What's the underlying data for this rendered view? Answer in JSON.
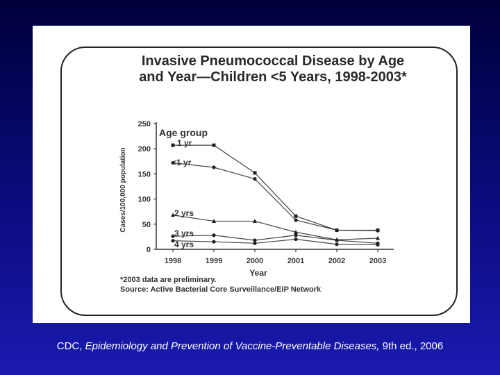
{
  "slide": {
    "caption_prefix": "CDC, ",
    "caption_italic": "Epidemiology and Prevention of Vaccine-Preventable Diseases,",
    "caption_suffix": " 9th ed., 2006"
  },
  "chart_data": {
    "type": "line",
    "title_line1": "Invasive Pneumococcal Disease by Age",
    "title_line2": "and Year—Children <5 Years, 1998-2003*",
    "xlabel": "Year",
    "ylabel": "Cases/100,000 population",
    "x": [
      1998,
      1999,
      2000,
      2001,
      2002,
      2003
    ],
    "x_tick_labels": [
      "1998",
      "1999",
      "2000",
      "2001",
      "2002",
      "2003"
    ],
    "ylim": [
      0,
      250
    ],
    "y_ticks": [
      0,
      50,
      100,
      150,
      200,
      250
    ],
    "y_tick_labels": [
      "0",
      "50",
      "100",
      "150",
      "200",
      "250"
    ],
    "legend_title": "Age group",
    "series": [
      {
        "name": "1 yr",
        "marker": "square",
        "values": [
          207,
          207,
          152,
          66,
          38,
          38
        ]
      },
      {
        "name": "<1 yr",
        "marker": "circle",
        "values": [
          172,
          163,
          140,
          58,
          38,
          37
        ]
      },
      {
        "name": "2 yrs",
        "marker": "triangle",
        "values": [
          68,
          56,
          56,
          34,
          19,
          22
        ]
      },
      {
        "name": "3 yrs",
        "marker": "circle",
        "values": [
          26,
          28,
          18,
          28,
          18,
          12
        ]
      },
      {
        "name": "4 yrs",
        "marker": "circle",
        "values": [
          17,
          15,
          12,
          20,
          10,
          9
        ]
      }
    ],
    "grid": false,
    "notes": [
      "*2003 data are preliminary.",
      "Source: Active Bacterial Core Surveillance/EIP Network"
    ]
  }
}
